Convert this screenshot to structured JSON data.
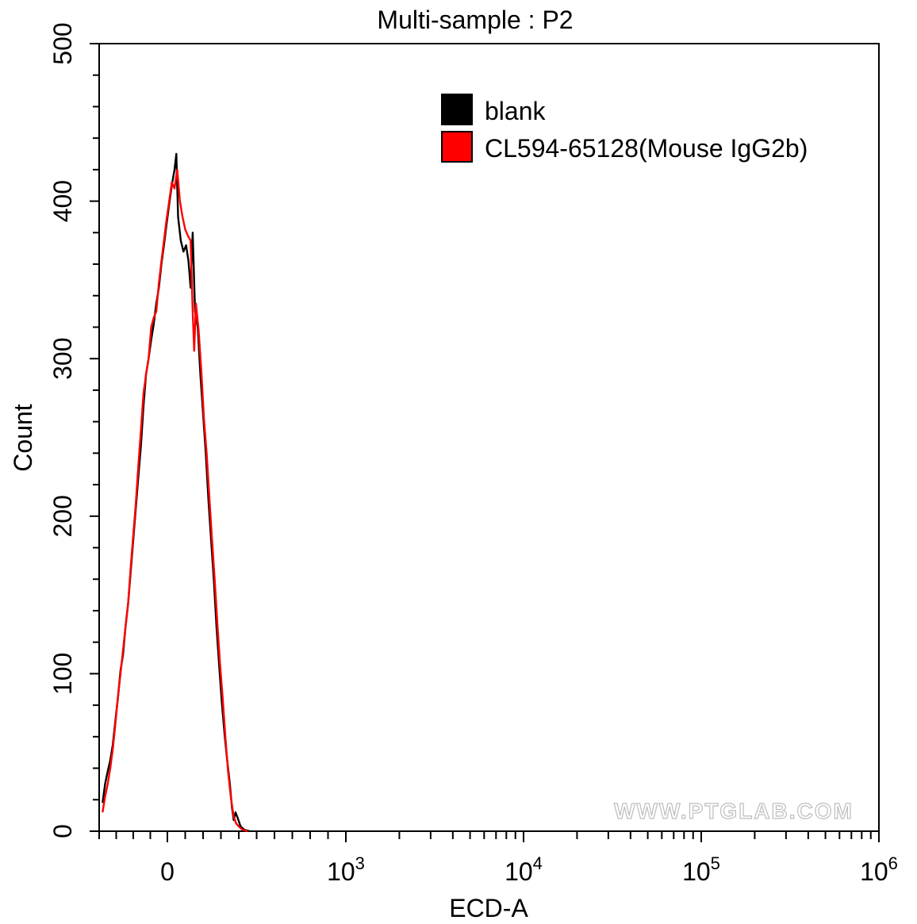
{
  "chart_data": {
    "type": "line",
    "title": "Multi-sample : P2",
    "xlabel": "ECD-A",
    "ylabel": "Count",
    "xscale": "biexponential",
    "ylim": [
      0,
      500
    ],
    "x_ticks": [
      {
        "value": 0,
        "base": "0",
        "exp": ""
      },
      {
        "value": 1000,
        "base": "10",
        "exp": "3"
      },
      {
        "value": 10000,
        "base": "10",
        "exp": "4"
      },
      {
        "value": 100000,
        "base": "10",
        "exp": "5"
      },
      {
        "value": 1000000,
        "base": "10",
        "exp": "6"
      }
    ],
    "y_ticks": [
      0,
      100,
      200,
      300,
      400,
      500
    ],
    "legend_position": "top-right",
    "watermark": "WWW.PTGLAB.COM",
    "series": [
      {
        "name": "blank",
        "color": "#000000",
        "points": [
          [
            -380,
            18
          ],
          [
            -365,
            30
          ],
          [
            -350,
            38
          ],
          [
            -335,
            45
          ],
          [
            -320,
            55
          ],
          [
            -305,
            70
          ],
          [
            -290,
            85
          ],
          [
            -275,
            102
          ],
          [
            -260,
            112
          ],
          [
            -245,
            130
          ],
          [
            -230,
            145
          ],
          [
            -215,
            165
          ],
          [
            -200,
            185
          ],
          [
            -185,
            205
          ],
          [
            -170,
            225
          ],
          [
            -155,
            245
          ],
          [
            -140,
            270
          ],
          [
            -125,
            290
          ],
          [
            -110,
            300
          ],
          [
            -95,
            312
          ],
          [
            -80,
            322
          ],
          [
            -65,
            335
          ],
          [
            -50,
            345
          ],
          [
            -35,
            360
          ],
          [
            -20,
            372
          ],
          [
            -5,
            385
          ],
          [
            10,
            398
          ],
          [
            25,
            410
          ],
          [
            40,
            420
          ],
          [
            50,
            430
          ],
          [
            60,
            390
          ],
          [
            75,
            375
          ],
          [
            90,
            368
          ],
          [
            105,
            372
          ],
          [
            118,
            362
          ],
          [
            130,
            345
          ],
          [
            142,
            380
          ],
          [
            155,
            330
          ],
          [
            170,
            320
          ],
          [
            185,
            290
          ],
          [
            200,
            265
          ],
          [
            215,
            240
          ],
          [
            230,
            210
          ],
          [
            245,
            185
          ],
          [
            260,
            160
          ],
          [
            275,
            130
          ],
          [
            290,
            105
          ],
          [
            305,
            82
          ],
          [
            320,
            62
          ],
          [
            335,
            45
          ],
          [
            350,
            30
          ],
          [
            362,
            15
          ],
          [
            372,
            7
          ],
          [
            382,
            12
          ],
          [
            395,
            8
          ],
          [
            410,
            3
          ],
          [
            430,
            1
          ],
          [
            460,
            0
          ]
        ]
      },
      {
        "name": "CL594-65128(Mouse IgG2b)",
        "color": "#ff0000",
        "points": [
          [
            -380,
            12
          ],
          [
            -365,
            22
          ],
          [
            -350,
            30
          ],
          [
            -335,
            40
          ],
          [
            -320,
            52
          ],
          [
            -305,
            68
          ],
          [
            -290,
            85
          ],
          [
            -275,
            100
          ],
          [
            -260,
            115
          ],
          [
            -245,
            130
          ],
          [
            -230,
            145
          ],
          [
            -215,
            168
          ],
          [
            -200,
            188
          ],
          [
            -185,
            208
          ],
          [
            -170,
            232
          ],
          [
            -155,
            255
          ],
          [
            -140,
            278
          ],
          [
            -125,
            290
          ],
          [
            -110,
            300
          ],
          [
            -95,
            320
          ],
          [
            -80,
            326
          ],
          [
            -65,
            330
          ],
          [
            -50,
            348
          ],
          [
            -35,
            362
          ],
          [
            -20,
            375
          ],
          [
            -5,
            388
          ],
          [
            10,
            400
          ],
          [
            25,
            412
          ],
          [
            40,
            408
          ],
          [
            55,
            420
          ],
          [
            70,
            400
          ],
          [
            85,
            390
          ],
          [
            100,
            382
          ],
          [
            115,
            378
          ],
          [
            130,
            375
          ],
          [
            142,
            330
          ],
          [
            150,
            305
          ],
          [
            160,
            335
          ],
          [
            175,
            318
          ],
          [
            190,
            292
          ],
          [
            205,
            262
          ],
          [
            220,
            240
          ],
          [
            235,
            212
          ],
          [
            250,
            185
          ],
          [
            265,
            160
          ],
          [
            280,
            132
          ],
          [
            295,
            106
          ],
          [
            310,
            84
          ],
          [
            325,
            60
          ],
          [
            340,
            38
          ],
          [
            355,
            22
          ],
          [
            370,
            10
          ],
          [
            385,
            5
          ],
          [
            400,
            3
          ],
          [
            420,
            1
          ],
          [
            450,
            0
          ]
        ]
      }
    ]
  }
}
